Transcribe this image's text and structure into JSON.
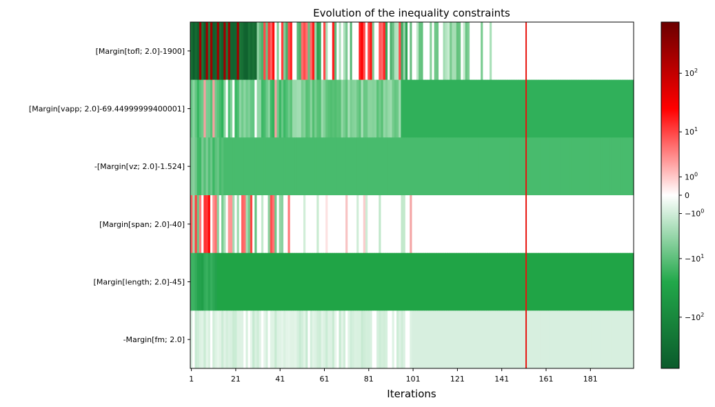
{
  "chart_data": {
    "type": "heatmap",
    "title": "Evolution of the inequality constraints",
    "xlabel": "Iterations",
    "ylabel": "",
    "x_tick_labels": [
      "1",
      "21",
      "41",
      "61",
      "81",
      "101",
      "121",
      "141",
      "161",
      "181"
    ],
    "x_ticks": [
      1,
      21,
      41,
      61,
      81,
      101,
      121,
      141,
      161,
      181
    ],
    "xlim": [
      1,
      200
    ],
    "n_iterations": 200,
    "rows": [
      "[Margin[tofl; 2.0]-1900]",
      "[Margin[vapp; 2.0]-69.44999999400001]",
      "-[Margin[vz; 2.0]-1.524]",
      "[Margin[span; 2.0]-40]",
      "[Margin[length; 2.0]-45]",
      "-Margin[fm; 2.0]"
    ],
    "highlight_iteration": 152,
    "highlight_color": "#e8130e",
    "colorbar": {
      "scale": "symlog",
      "range": [
        -700,
        700
      ],
      "tick_labels": [
        "10^2",
        "10^1",
        "10^0",
        "0",
        "-10^0",
        "-10^1",
        "-10^2"
      ],
      "tick_values": [
        100,
        10,
        1,
        0,
        -1,
        -10,
        -100
      ],
      "colormap": [
        "#0b5a2b",
        "#22a84a",
        "#ffffff",
        "#ff0000",
        "#6b0000"
      ]
    }
  }
}
